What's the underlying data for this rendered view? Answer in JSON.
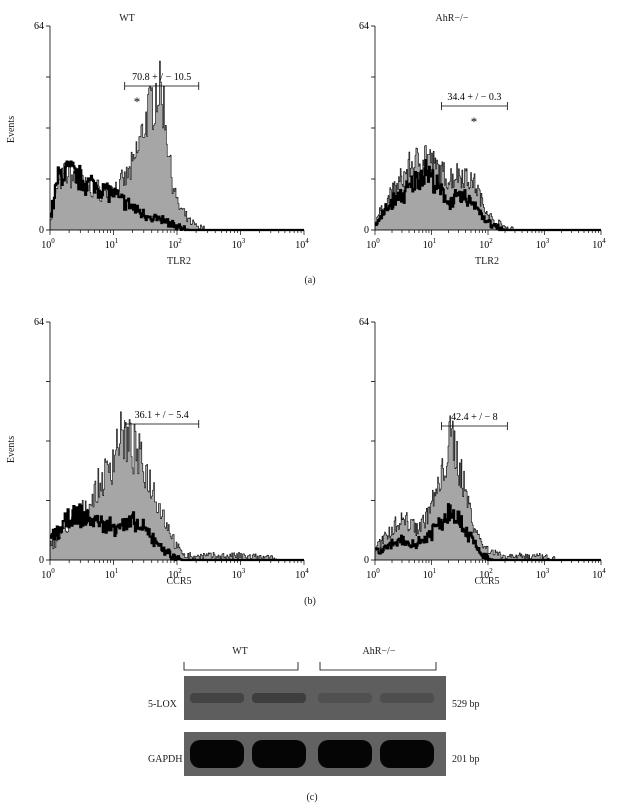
{
  "chart_data": [
    {
      "type": "area",
      "panel": "a",
      "title": "WT",
      "xlabel": "TLR2",
      "ylabel": "Events",
      "xscale": "log",
      "xlim": [
        1,
        10000
      ],
      "ylim": [
        0,
        64
      ],
      "x_ticks": [
        "10",
        "10",
        "10",
        "10",
        "10"
      ],
      "x_tick_exponents": [
        "0",
        "1",
        "2",
        "3",
        "4"
      ],
      "y_ticks": [
        "0",
        "64"
      ],
      "annotation": "70.8 + / − 10.5",
      "marker": "*",
      "gate": [
        15,
        220
      ],
      "series": [
        {
          "name": "",
          "x": [
            1,
            1.3,
            1.8,
            2.5,
            3.5,
            5,
            7,
            10,
            14,
            20,
            30,
            40,
            50,
            60,
            80,
            100,
            150,
            220,
            300,
            500
          ],
          "values": [
            3,
            14,
            18,
            16,
            14,
            13,
            12,
            13,
            15,
            20,
            33,
            40,
            45,
            40,
            18,
            8,
            3,
            1,
            0,
            0
          ]
        },
        {
          "name": "",
          "x": [
            1,
            1.3,
            1.8,
            2.5,
            3.5,
            5,
            7,
            10,
            14,
            20,
            30,
            40,
            60,
            100,
            150,
            300
          ],
          "values": [
            4,
            16,
            19,
            17,
            15,
            14,
            13,
            11,
            9,
            7,
            5,
            4,
            3,
            1,
            0,
            0
          ]
        }
      ]
    },
    {
      "type": "area",
      "panel": "a",
      "title": "AhR−/−",
      "xlabel": "TLR2",
      "ylabel": "",
      "xscale": "log",
      "xlim": [
        1,
        10000
      ],
      "ylim": [
        0,
        64
      ],
      "x_ticks": [
        "10",
        "10",
        "10",
        "10",
        "10"
      ],
      "x_tick_exponents": [
        "0",
        "1",
        "2",
        "3",
        "4"
      ],
      "y_ticks": [
        "0",
        "64"
      ],
      "annotation": "34.4 + / − 0.3",
      "marker": "*",
      "gate": [
        15,
        220
      ],
      "series": [
        {
          "name": "",
          "x": [
            1,
            1.5,
            2,
            3,
            4,
            5,
            6,
            8,
            10,
            14,
            20,
            30,
            40,
            60,
            80,
            120,
            200,
            300
          ],
          "values": [
            3,
            8,
            12,
            16,
            20,
            21,
            22,
            24,
            21,
            18,
            16,
            18,
            17,
            14,
            8,
            3,
            1,
            0
          ]
        },
        {
          "name": "",
          "x": [
            1,
            1.5,
            2,
            3,
            4,
            5,
            6,
            8,
            10,
            14,
            20,
            30,
            40,
            60,
            80,
            120,
            200
          ],
          "values": [
            2,
            6,
            9,
            11,
            13,
            15,
            17,
            19,
            16,
            12,
            9,
            10,
            10,
            8,
            4,
            1,
            0
          ]
        }
      ]
    },
    {
      "type": "area",
      "panel": "b",
      "title": "",
      "xlabel": "CCR5",
      "ylabel": "Events",
      "xscale": "log",
      "xlim": [
        1,
        10000
      ],
      "ylim": [
        0,
        64
      ],
      "x_ticks": [
        "10",
        "10",
        "10",
        "10",
        "10"
      ],
      "x_tick_exponents": [
        "0",
        "1",
        "2",
        "3",
        "4"
      ],
      "y_ticks": [
        "0",
        "64"
      ],
      "annotation": "36.1 + / − 5.4",
      "marker": "",
      "gate": [
        15,
        220
      ],
      "series": [
        {
          "name": "",
          "x": [
            1,
            1.5,
            2,
            3,
            4,
            6,
            8,
            10,
            12,
            15,
            20,
            30,
            40,
            60,
            80,
            100,
            150,
            300,
            1000,
            5000
          ],
          "values": [
            4,
            7,
            9,
            12,
            15,
            20,
            24,
            28,
            34,
            32,
            30,
            25,
            20,
            12,
            7,
            3,
            1,
            1,
            1,
            0
          ]
        },
        {
          "name": "",
          "x": [
            1,
            1.5,
            2,
            3,
            4,
            6,
            8,
            10,
            12,
            15,
            20,
            30,
            40,
            60,
            80,
            120
          ],
          "values": [
            6,
            9,
            11,
            12,
            11,
            10,
            9,
            9,
            10,
            9,
            10,
            8,
            6,
            3,
            1,
            0
          ]
        }
      ]
    },
    {
      "type": "area",
      "panel": "b",
      "title": "",
      "xlabel": "CCR5",
      "ylabel": "",
      "xscale": "log",
      "xlim": [
        1,
        10000
      ],
      "ylim": [
        0,
        64
      ],
      "x_ticks": [
        "10",
        "10",
        "10",
        "10",
        "10"
      ],
      "x_tick_exponents": [
        "0",
        "1",
        "2",
        "3",
        "4"
      ],
      "y_ticks": [
        "0",
        "64"
      ],
      "annotation": "42.4 + / − 8",
      "marker": "",
      "gate": [
        15,
        220
      ],
      "series": [
        {
          "name": "",
          "x": [
            1,
            1.5,
            2,
            3,
            4,
            6,
            8,
            10,
            14,
            18,
            22,
            26,
            30,
            40,
            60,
            80,
            120,
            200,
            500,
            2000
          ],
          "values": [
            3,
            6,
            9,
            11,
            10,
            9,
            12,
            15,
            20,
            28,
            33,
            30,
            26,
            18,
            8,
            4,
            2,
            1,
            1,
            0
          ]
        },
        {
          "name": "",
          "x": [
            1,
            1.5,
            2,
            3,
            4,
            6,
            8,
            10,
            14,
            18,
            22,
            26,
            30,
            40,
            60,
            80,
            120
          ],
          "values": [
            2,
            3,
            4,
            5,
            4,
            5,
            6,
            8,
            10,
            12,
            14,
            13,
            11,
            8,
            4,
            1,
            0
          ]
        }
      ]
    }
  ],
  "panel_labels": {
    "a": "(a)",
    "b": "(b)",
    "c": "(c)"
  },
  "gel": {
    "group_left": "WT",
    "group_right": "AhR−/−",
    "rows": [
      {
        "label": "5-LOX",
        "size": "529 bp",
        "intensities": [
          0.28,
          0.35,
          0.12,
          0.14
        ]
      },
      {
        "label": "GAPDH",
        "size": "201 bp",
        "intensities": [
          0.95,
          0.95,
          0.95,
          0.95
        ]
      }
    ]
  },
  "colors": {
    "fill": "#a6a6a6",
    "line": "#000000",
    "gel_bg": "#555555"
  }
}
